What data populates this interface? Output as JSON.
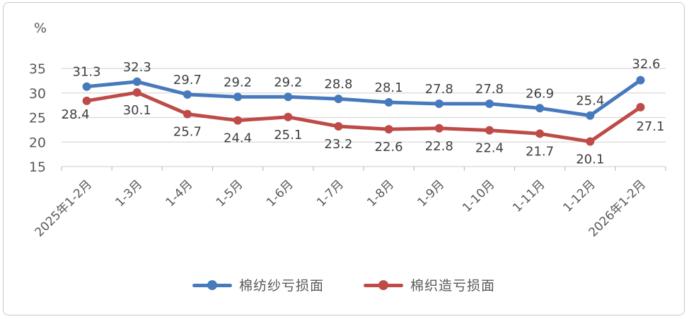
{
  "chart_data": {
    "type": "line",
    "title": "",
    "xlabel": "",
    "ylabel": "%",
    "categories": [
      "2025年1-2月",
      "1-3月",
      "1-4月",
      "1-5月",
      "1-6月",
      "1-7月",
      "1-8月",
      "1-9月",
      "1-10月",
      "1-11月",
      "1-12月",
      "2026年1-2月"
    ],
    "series": [
      {
        "name": "棉纺纱亏损面",
        "color": "#4779BD",
        "label_position": "above",
        "values": [
          31.3,
          32.3,
          29.7,
          29.2,
          29.2,
          28.8,
          28.1,
          27.8,
          27.8,
          26.9,
          25.4,
          32.6
        ]
      },
      {
        "name": "棉织造亏损面",
        "color": "#BE4B48",
        "label_position": "below",
        "values": [
          28.4,
          30.1,
          25.7,
          24.4,
          25.1,
          23.2,
          22.6,
          22.8,
          22.4,
          21.7,
          20.1,
          27.1
        ]
      }
    ],
    "ylim": [
      15,
      35
    ],
    "yticks": [
      15,
      20,
      25,
      30,
      35
    ],
    "grid": true,
    "legend_position": "bottom",
    "colors": {
      "grid": "#d8d8d8",
      "axis_tick": "#bfbfbf",
      "axis_text": "#595959",
      "data_label_text": "#3f3f3f",
      "frame_border": "#c9c9c9"
    }
  }
}
